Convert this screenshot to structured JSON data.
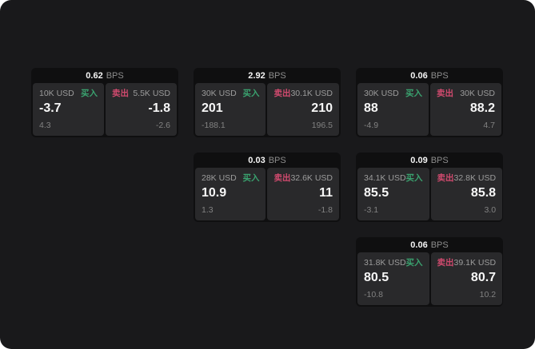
{
  "page": {
    "background": "#19191b",
    "outer_background": "#ffffff"
  },
  "colors": {
    "buy": "#3aa26f",
    "sell": "#d04a6e",
    "card_bg": "#0f0f10",
    "panel_bg": "#29292b",
    "value_text": "#f7f7f7",
    "label_text": "#9c9c9c",
    "sub_text": "#828282"
  },
  "labels": {
    "bps": "BPS",
    "buy": "买入",
    "sell": "卖出"
  },
  "cards": [
    {
      "bps": "0.62",
      "grid": {
        "row": 1,
        "col": 1
      },
      "buy": {
        "size": "10K USD",
        "value": "-3.7",
        "change": "4.3"
      },
      "sell": {
        "size": "5.5K USD",
        "value": "-1.8",
        "change": "-2.6"
      }
    },
    {
      "bps": "2.92",
      "grid": {
        "row": 1,
        "col": 2
      },
      "buy": {
        "size": "30K USD",
        "value": "201",
        "change": "-188.1"
      },
      "sell": {
        "size": "30.1K USD",
        "value": "210",
        "change": "196.5"
      }
    },
    {
      "bps": "0.06",
      "grid": {
        "row": 1,
        "col": 3
      },
      "buy": {
        "size": "30K USD",
        "value": "88",
        "change": "-4.9"
      },
      "sell": {
        "size": "30K USD",
        "value": "88.2",
        "change": "4.7"
      }
    },
    {
      "bps": "0.03",
      "grid": {
        "row": 2,
        "col": 2
      },
      "buy": {
        "size": "28K USD",
        "value": "10.9",
        "change": "1.3"
      },
      "sell": {
        "size": "32.6K USD",
        "value": "11",
        "change": "-1.8"
      }
    },
    {
      "bps": "0.09",
      "grid": {
        "row": 2,
        "col": 3
      },
      "buy": {
        "size": "34.1K USD",
        "value": "85.5",
        "change": "-3.1"
      },
      "sell": {
        "size": "32.8K USD",
        "value": "85.8",
        "change": "3.0"
      }
    },
    {
      "bps": "0.06",
      "grid": {
        "row": 3,
        "col": 3
      },
      "buy": {
        "size": "31.8K USD",
        "value": "80.5",
        "change": "-10.8"
      },
      "sell": {
        "size": "39.1K USD",
        "value": "80.7",
        "change": "10.2"
      }
    }
  ]
}
